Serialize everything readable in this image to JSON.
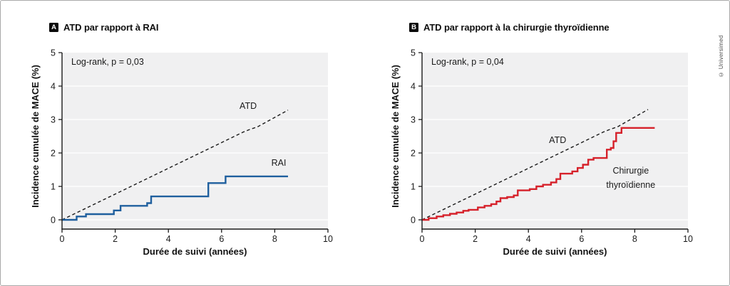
{
  "copyright": "© Universimed",
  "chart_data": [
    {
      "type": "line",
      "panel_label": "A",
      "title": "ATD par rapport à RAI",
      "annotation": "Log-rank, p = 0,03",
      "xlabel": "Durée de suivi (années)",
      "ylabel": "Incidence cumulée de MACE (%)",
      "xlim": [
        0,
        10
      ],
      "ylim": [
        0,
        5
      ],
      "xticks": [
        0,
        2,
        4,
        6,
        8,
        10
      ],
      "yticks": [
        0,
        1,
        2,
        3,
        4,
        5
      ],
      "grid": true,
      "plot_background": "#f0f0f1",
      "grid_color": "#ffffff",
      "legend_position": "inline-labels",
      "series": [
        {
          "name": "ATD",
          "type": "line",
          "style": "dashed",
          "color": "#1a1a1a",
          "label": {
            "text": [
              "ATD"
            ],
            "pos": [
              7.0,
              3.32
            ]
          },
          "points": [
            [
              0,
              0
            ],
            [
              6.8,
              2.62
            ],
            [
              7.05,
              2.7
            ],
            [
              7.35,
              2.78
            ],
            [
              8.5,
              3.28
            ]
          ]
        },
        {
          "name": "RAI",
          "type": "step",
          "style": "solid",
          "color": "#1f5f9e",
          "label": {
            "text": [
              "RAI"
            ],
            "pos": [
              8.15,
              1.62
            ]
          },
          "points": [
            [
              0,
              0
            ],
            [
              0.55,
              0.1
            ],
            [
              0.9,
              0.17
            ],
            [
              1.95,
              0.28
            ],
            [
              2.2,
              0.42
            ],
            [
              3.2,
              0.5
            ],
            [
              3.35,
              0.7
            ],
            [
              5.5,
              1.1
            ],
            [
              6.15,
              1.3
            ],
            [
              8.5,
              1.3
            ]
          ]
        }
      ]
    },
    {
      "type": "line",
      "panel_label": "B",
      "title": "ATD par rapport à la chirurgie thyroïdienne",
      "annotation": "Log-rank, p = 0,04",
      "xlabel": "Durée de suivi (années)",
      "ylabel": "Incidence cumulée de MACE (%)",
      "xlim": [
        0,
        10
      ],
      "ylim": [
        0,
        5
      ],
      "xticks": [
        0,
        2,
        4,
        6,
        8,
        10
      ],
      "yticks": [
        0,
        1,
        2,
        3,
        4,
        5
      ],
      "grid": true,
      "plot_background": "#f0f0f1",
      "grid_color": "#ffffff",
      "legend_position": "inline-labels",
      "series": [
        {
          "name": "ATD",
          "type": "line",
          "style": "dashed",
          "color": "#1a1a1a",
          "label": {
            "text": [
              "ATD"
            ],
            "pos": [
              5.1,
              2.3
            ]
          },
          "points": [
            [
              0,
              0
            ],
            [
              6.8,
              2.62
            ],
            [
              7.05,
              2.7
            ],
            [
              7.35,
              2.78
            ],
            [
              8.5,
              3.3
            ]
          ]
        },
        {
          "name": "Chirurgie thyroïdienne",
          "type": "step",
          "style": "solid",
          "color": "#d6212a",
          "label": {
            "text": [
              "Chirurgie",
              "thyroïdienne"
            ],
            "pos": [
              7.85,
              1.38
            ]
          },
          "points": [
            [
              0,
              0
            ],
            [
              0.25,
              0.05
            ],
            [
              0.55,
              0.1
            ],
            [
              0.8,
              0.14
            ],
            [
              1.05,
              0.18
            ],
            [
              1.3,
              0.22
            ],
            [
              1.55,
              0.27
            ],
            [
              1.75,
              0.3
            ],
            [
              2.1,
              0.37
            ],
            [
              2.35,
              0.42
            ],
            [
              2.6,
              0.47
            ],
            [
              2.8,
              0.55
            ],
            [
              2.95,
              0.65
            ],
            [
              3.2,
              0.68
            ],
            [
              3.45,
              0.73
            ],
            [
              3.6,
              0.88
            ],
            [
              4.05,
              0.92
            ],
            [
              4.3,
              1.0
            ],
            [
              4.55,
              1.05
            ],
            [
              4.85,
              1.12
            ],
            [
              5.05,
              1.22
            ],
            [
              5.2,
              1.38
            ],
            [
              5.65,
              1.45
            ],
            [
              5.85,
              1.55
            ],
            [
              6.05,
              1.65
            ],
            [
              6.25,
              1.8
            ],
            [
              6.45,
              1.85
            ],
            [
              6.95,
              2.1
            ],
            [
              7.1,
              2.15
            ],
            [
              7.2,
              2.35
            ],
            [
              7.3,
              2.6
            ],
            [
              7.5,
              2.75
            ],
            [
              8.75,
              2.75
            ]
          ]
        }
      ]
    }
  ]
}
